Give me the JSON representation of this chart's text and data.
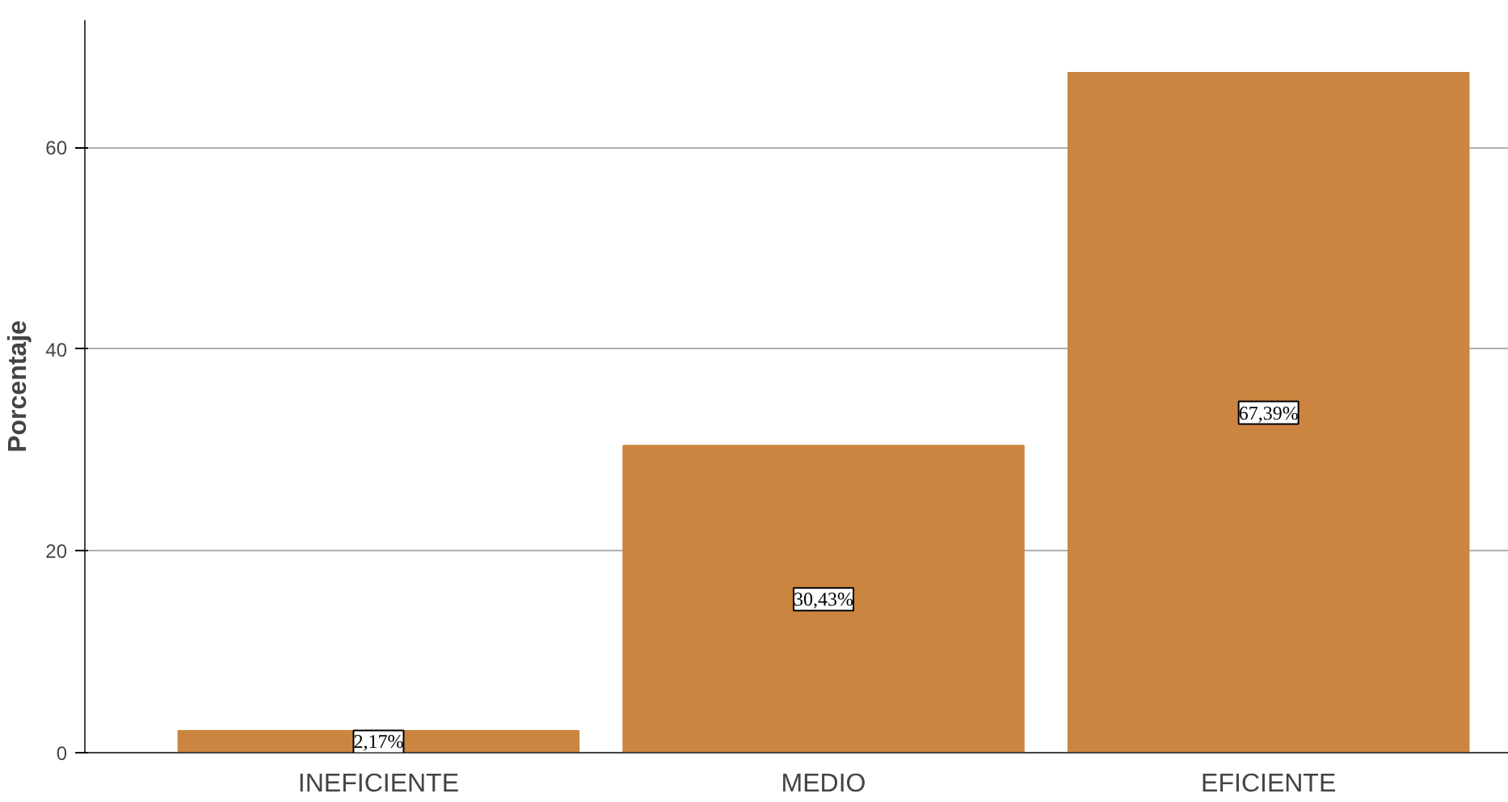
{
  "chart_data": {
    "type": "bar",
    "ylabel": "Porcentaje",
    "categories": [
      "INEFICIENTE",
      "MEDIO",
      "EFICIENTE"
    ],
    "values": [
      2.17,
      30.43,
      67.39
    ],
    "value_labels": [
      "2,17%",
      "30,43%",
      "67,39%"
    ],
    "color": "#cc8540",
    "ylim": [
      0,
      72.6
    ],
    "yticks": [
      0,
      20,
      40,
      60
    ],
    "grid": "y"
  }
}
